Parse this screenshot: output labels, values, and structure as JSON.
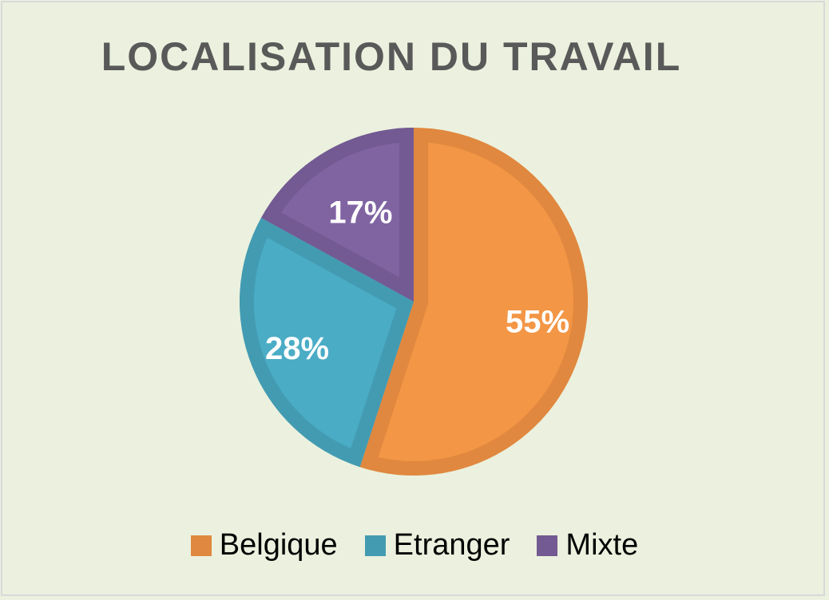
{
  "chart_data": {
    "type": "pie",
    "title": "LOCALISATION DU TRAVAIL",
    "categories": [
      "Belgique",
      "Etranger",
      "Mixte"
    ],
    "values": [
      55,
      28,
      17
    ],
    "labels": [
      "55%",
      "28%",
      "17%"
    ],
    "colors": [
      "#f39645",
      "#4aacc5",
      "#8064a2"
    ],
    "border_colors": [
      "#e0883f",
      "#439bb2",
      "#735a92"
    ],
    "legend_position": "bottom",
    "start_angle": "top, clockwise"
  }
}
